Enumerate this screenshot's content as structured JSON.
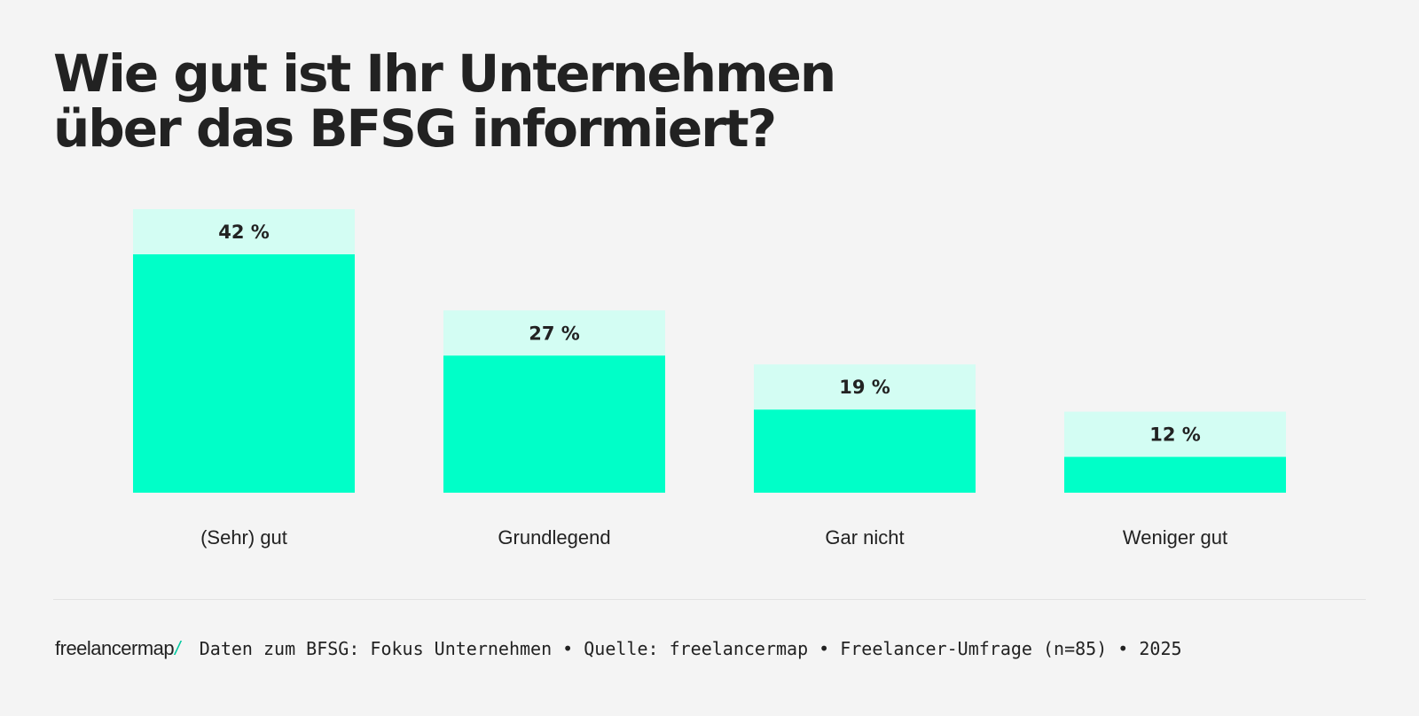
{
  "title_lines": [
    "Wie gut ist Ihr Unternehmen",
    "über das BFSG informiert?"
  ],
  "colors": {
    "bar": "#00ffc8",
    "bar_cap": "#d3fdf3",
    "text": "#222222",
    "accent": "#00c9a0"
  },
  "chart_data": {
    "type": "bar",
    "title": "Wie gut ist Ihr Unternehmen über das BFSG informiert?",
    "categories": [
      "(Sehr) gut",
      "Grundlegend",
      "Gar nicht",
      "Weniger gut"
    ],
    "values": [
      42,
      27,
      19,
      12
    ],
    "value_labels": [
      "42 %",
      "27 %",
      "19 %",
      "12 %"
    ],
    "unit": "%",
    "ylim": [
      0,
      42
    ],
    "xlabel": "",
    "ylabel": "",
    "grid": false
  },
  "footer": {
    "logo_text": "freelancermap",
    "logo_mark": "/",
    "source": "Daten zum BFSG: Fokus Unternehmen • Quelle: freelancermap • Freelancer-Umfrage (n=85) • 2025"
  }
}
